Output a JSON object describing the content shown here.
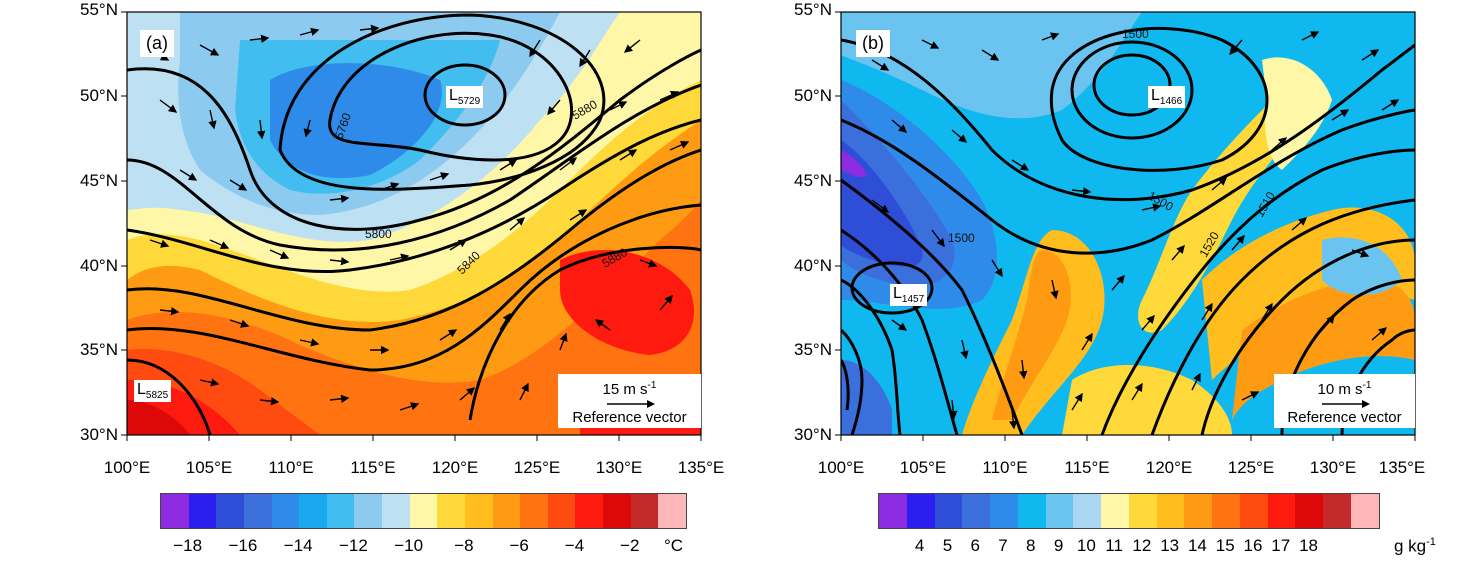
{
  "panels": [
    {
      "label": "(a)",
      "lat_ticks": [
        "55°N",
        "50°N",
        "45°N",
        "40°N",
        "35°N",
        "30°N"
      ],
      "lon_ticks": [
        "100°E",
        "105°E",
        "110°E",
        "115°E",
        "120°E",
        "125°E",
        "130°E",
        "135°E"
      ],
      "lows": [
        {
          "letter": "L",
          "value": "5729"
        },
        {
          "letter": "L",
          "value": "5825"
        }
      ],
      "contour_labels": [
        "5760",
        "5800",
        "5840",
        "5880",
        "5880"
      ],
      "reference": {
        "speed": "15 m s",
        "exp": "-1",
        "text": "Reference vector"
      },
      "colorbar": {
        "colors": [
          "#8c2be2",
          "#2a1fef",
          "#2f4ed8",
          "#3a6fdc",
          "#2f8bea",
          "#1aa8f0",
          "#41bdf0",
          "#8ccbef",
          "#bde0f2",
          "#fff7a8",
          "#ffd93a",
          "#ffbd1e",
          "#ff9b12",
          "#ff7410",
          "#ff4a10",
          "#ff1a10",
          "#dd0909",
          "#c42a2a",
          "#ffb6b6"
        ],
        "labels": [
          "−18",
          "−16",
          "−14",
          "−12",
          "−10",
          "−8",
          "−6",
          "−4",
          "−2"
        ],
        "unit": "°C"
      }
    },
    {
      "label": "(b)",
      "lat_ticks": [
        "55°N",
        "50°N",
        "45°N",
        "40°N",
        "35°N",
        "30°N"
      ],
      "lon_ticks": [
        "100°E",
        "105°E",
        "110°E",
        "115°E",
        "120°E",
        "125°E",
        "130°E",
        "135°E"
      ],
      "lows": [
        {
          "letter": "L",
          "value": "1466"
        },
        {
          "letter": "L",
          "value": "1457"
        }
      ],
      "contour_labels": [
        "1500",
        "1500",
        "1510",
        "1520",
        "1500"
      ],
      "reference": {
        "speed": "10 m s",
        "exp": "-1",
        "text": "Reference vector"
      },
      "colorbar": {
        "colors": [
          "#8c2be2",
          "#2a1fef",
          "#2f4ed8",
          "#3a6fdc",
          "#2f8bea",
          "#10b8f0",
          "#6bc4ef",
          "#a9d6f2",
          "#fff7a8",
          "#ffd93a",
          "#ffbd1e",
          "#ff9b12",
          "#ff7410",
          "#ff4a10",
          "#ff1a10",
          "#dd0909",
          "#c42a2a",
          "#ffb6b6"
        ],
        "labels": [
          "4",
          "5",
          "6",
          "7",
          "8",
          "9",
          "10",
          "11",
          "12",
          "13",
          "14",
          "15",
          "16",
          "17",
          "18"
        ],
        "unit": "g kg",
        "unit_exp": "-1"
      }
    }
  ]
}
